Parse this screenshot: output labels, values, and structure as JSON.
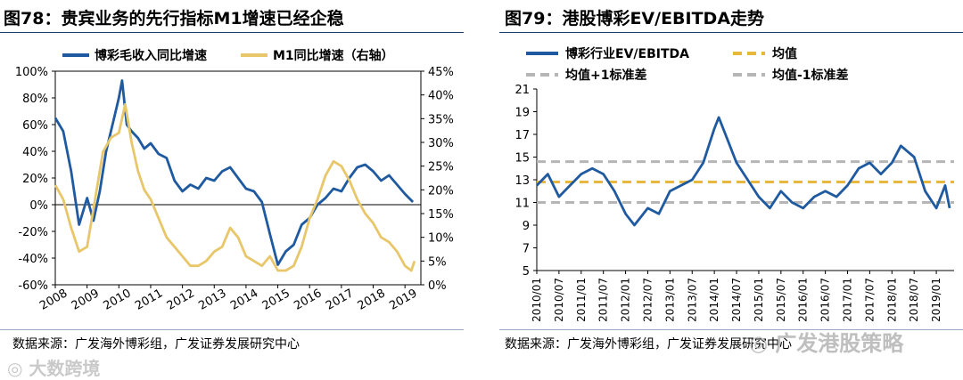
{
  "colors": {
    "blue": "#1f5aa0",
    "gold": "#e8c66a",
    "dash": "#b6b6b6",
    "mean": "#e8b83a",
    "rule": "#1f3a6b"
  },
  "left": {
    "title": "图78：贵宾业务的先行指标M1增速已经企稳",
    "source": "数据来源：广发海外博彩组，广发证券发展研究中心"
  },
  "right": {
    "title": "图79：港股博彩EV/EBITDA走势",
    "source": "数据来源：广发海外博彩组，广发证券发展研究中心"
  },
  "watermark": {
    "left": "大数跨境",
    "right": "广发港股策略"
  },
  "chart_data": [
    {
      "type": "line",
      "title": "图78：贵宾业务的先行指标M1增速已经企稳",
      "series": [
        {
          "name": "博彩毛收入同比增速",
          "axis": "left",
          "color": "#1f5aa0",
          "x": [
            2008.0,
            2008.25,
            2008.5,
            2008.75,
            2009.0,
            2009.2,
            2009.4,
            2009.6,
            2009.8,
            2010.0,
            2010.1,
            2010.25,
            2010.4,
            2010.6,
            2010.8,
            2011.0,
            2011.25,
            2011.5,
            2011.75,
            2012.0,
            2012.25,
            2012.5,
            2012.75,
            2013.0,
            2013.25,
            2013.5,
            2013.75,
            2014.0,
            2014.25,
            2014.5,
            2014.75,
            2015.0,
            2015.25,
            2015.5,
            2015.75,
            2016.0,
            2016.25,
            2016.5,
            2016.75,
            2017.0,
            2017.25,
            2017.5,
            2017.75,
            2018.0,
            2018.25,
            2018.5,
            2018.75,
            2019.0,
            2019.25
          ],
          "values": [
            65,
            55,
            25,
            -15,
            5,
            -12,
            10,
            40,
            60,
            80,
            93,
            60,
            55,
            50,
            42,
            46,
            38,
            35,
            18,
            10,
            15,
            12,
            20,
            18,
            25,
            28,
            20,
            12,
            10,
            2,
            -22,
            -45,
            -35,
            -30,
            -15,
            -10,
            0,
            5,
            12,
            10,
            20,
            28,
            30,
            25,
            18,
            22,
            15,
            8,
            2
          ]
        },
        {
          "name": "M1同比增速（右轴）",
          "axis": "right",
          "color": "#e8c66a",
          "x": [
            2008.0,
            2008.25,
            2008.5,
            2008.75,
            2009.0,
            2009.25,
            2009.5,
            2009.75,
            2010.0,
            2010.2,
            2010.4,
            2010.6,
            2010.8,
            2011.0,
            2011.25,
            2011.5,
            2011.75,
            2012.0,
            2012.25,
            2012.5,
            2012.75,
            2013.0,
            2013.25,
            2013.5,
            2013.75,
            2014.0,
            2014.25,
            2014.5,
            2014.75,
            2015.0,
            2015.25,
            2015.5,
            2015.75,
            2016.0,
            2016.25,
            2016.5,
            2016.75,
            2017.0,
            2017.25,
            2017.5,
            2017.75,
            2018.0,
            2018.25,
            2018.5,
            2018.75,
            2019.0,
            2019.2,
            2019.3
          ],
          "values": [
            21,
            18,
            12,
            7,
            8,
            18,
            28,
            31,
            32,
            38,
            30,
            24,
            20,
            18,
            14,
            10,
            8,
            6,
            4,
            4,
            5,
            7,
            8,
            12,
            10,
            6,
            5,
            4,
            6,
            3,
            3,
            4,
            8,
            14,
            18,
            23,
            26,
            25,
            22,
            18,
            15,
            13,
            10,
            9,
            7,
            4,
            3,
            5
          ]
        }
      ],
      "ylim_left": [
        -60,
        100
      ],
      "ylim_right": [
        0,
        45
      ],
      "yticks_left": [
        "100%",
        "80%",
        "60%",
        "40%",
        "20%",
        "0%",
        "-20%",
        "-40%",
        "-60%"
      ],
      "yticks_right": [
        "45%",
        "40%",
        "35%",
        "30%",
        "25%",
        "20%",
        "15%",
        "10%",
        "5%",
        "0%"
      ],
      "xticks": [
        "2008",
        "2009",
        "2010",
        "2011",
        "2012",
        "2013",
        "2014",
        "2015",
        "2016",
        "2017",
        "2018",
        "2019"
      ],
      "xlim": [
        2008,
        2019.5
      ]
    },
    {
      "type": "line",
      "title": "图79：港股博彩EV/EBITDA走势",
      "series": [
        {
          "name": "博彩行业EV/EBITDA",
          "color": "#1f5aa0",
          "x": [
            2010.0,
            2010.25,
            2010.5,
            2010.75,
            2011.0,
            2011.25,
            2011.5,
            2011.75,
            2012.0,
            2012.2,
            2012.5,
            2012.75,
            2013.0,
            2013.25,
            2013.5,
            2013.75,
            2014.0,
            2014.1,
            2014.25,
            2014.5,
            2014.75,
            2015.0,
            2015.25,
            2015.5,
            2015.75,
            2016.0,
            2016.25,
            2016.5,
            2016.75,
            2017.0,
            2017.25,
            2017.5,
            2017.75,
            2018.0,
            2018.2,
            2018.5,
            2018.75,
            2019.0,
            2019.2,
            2019.3
          ],
          "values": [
            12.5,
            13.5,
            11.5,
            12.5,
            13.5,
            14.0,
            13.5,
            12.0,
            10.0,
            9.0,
            10.5,
            10.0,
            12.0,
            12.5,
            13.0,
            14.5,
            17.5,
            18.5,
            17.0,
            14.5,
            13.0,
            11.5,
            10.5,
            12.0,
            11.0,
            10.5,
            11.5,
            12.0,
            11.5,
            12.5,
            14.0,
            14.5,
            13.5,
            14.5,
            16.0,
            15.0,
            12.0,
            10.5,
            12.5,
            10.5
          ]
        },
        {
          "name": "均值",
          "color": "#e8b83a",
          "value": 12.8
        },
        {
          "name": "均值+1标准差",
          "color": "#b6b6b6",
          "value": 14.6
        },
        {
          "name": "均值-1标准差",
          "color": "#b6b6b6",
          "value": 11.0
        }
      ],
      "ylim": [
        5,
        21
      ],
      "yticks": [
        "21",
        "19",
        "17",
        "15",
        "13",
        "11",
        "9",
        "7",
        "5"
      ],
      "xticks": [
        "2010/01",
        "2010/07",
        "2011/01",
        "2011/07",
        "2012/01",
        "2012/07",
        "2013/01",
        "2013/07",
        "2014/01",
        "2014/07",
        "2015/01",
        "2015/07",
        "2016/01",
        "2016/07",
        "2017/01",
        "2017/07",
        "2018/01",
        "2018/07",
        "2019/01"
      ],
      "xlim": [
        2010.0,
        2019.4
      ]
    }
  ]
}
